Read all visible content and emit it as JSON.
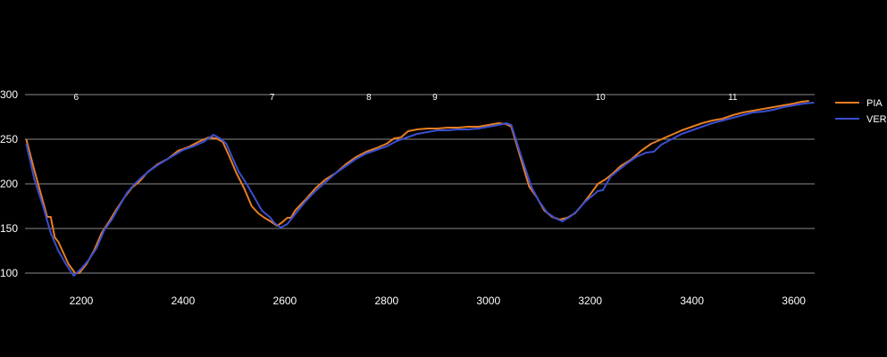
{
  "chart_data": {
    "type": "line",
    "title": "",
    "xlabel": "",
    "ylabel": "",
    "xlim": [
      2090,
      3640
    ],
    "ylim": [
      100,
      300
    ],
    "grid": true,
    "legend_position": "right",
    "x_ticks": [
      {
        "value": 2200,
        "label": "2200"
      },
      {
        "value": 2400,
        "label": "2400"
      },
      {
        "value": 2600,
        "label": "2600"
      },
      {
        "value": 2800,
        "label": "2800"
      },
      {
        "value": 3000,
        "label": "3000"
      },
      {
        "value": 3200,
        "label": "3200"
      },
      {
        "value": 3400,
        "label": "3400"
      },
      {
        "value": 3600,
        "label": "3600"
      }
    ],
    "y_ticks": [
      {
        "value": 300,
        "label": "300"
      },
      {
        "value": 250,
        "label": "250"
      },
      {
        "value": 200,
        "label": "200"
      },
      {
        "value": 150,
        "label": "150"
      },
      {
        "value": 100,
        "label": "100"
      }
    ],
    "corner_annotations": [
      {
        "x": 2190,
        "label": "6"
      },
      {
        "x": 2575,
        "label": "7"
      },
      {
        "x": 2765,
        "label": "8"
      },
      {
        "x": 2895,
        "label": "9"
      },
      {
        "x": 3220,
        "label": "10"
      },
      {
        "x": 3480,
        "label": "11"
      }
    ],
    "series": [
      {
        "name": "PIA",
        "color": "#e67e22",
        "points": [
          [
            2092,
            250
          ],
          [
            2108,
            215
          ],
          [
            2125,
            180
          ],
          [
            2133,
            163
          ],
          [
            2140,
            163
          ],
          [
            2148,
            140
          ],
          [
            2155,
            135
          ],
          [
            2163,
            125
          ],
          [
            2175,
            110
          ],
          [
            2188,
            100
          ],
          [
            2196,
            100
          ],
          [
            2210,
            110
          ],
          [
            2225,
            125
          ],
          [
            2240,
            145
          ],
          [
            2255,
            158
          ],
          [
            2270,
            172
          ],
          [
            2285,
            185
          ],
          [
            2300,
            196
          ],
          [
            2315,
            203
          ],
          [
            2330,
            213
          ],
          [
            2350,
            222
          ],
          [
            2370,
            228
          ],
          [
            2390,
            237
          ],
          [
            2410,
            241
          ],
          [
            2430,
            247
          ],
          [
            2450,
            252
          ],
          [
            2465,
            251
          ],
          [
            2478,
            247
          ],
          [
            2490,
            232
          ],
          [
            2505,
            212
          ],
          [
            2520,
            195
          ],
          [
            2535,
            175
          ],
          [
            2548,
            167
          ],
          [
            2560,
            162
          ],
          [
            2572,
            158
          ],
          [
            2585,
            153
          ],
          [
            2595,
            157
          ],
          [
            2605,
            162
          ],
          [
            2612,
            162
          ],
          [
            2620,
            170
          ],
          [
            2640,
            182
          ],
          [
            2660,
            195
          ],
          [
            2680,
            205
          ],
          [
            2700,
            212
          ],
          [
            2720,
            222
          ],
          [
            2740,
            230
          ],
          [
            2760,
            236
          ],
          [
            2780,
            240
          ],
          [
            2800,
            245
          ],
          [
            2815,
            251
          ],
          [
            2828,
            252
          ],
          [
            2842,
            259
          ],
          [
            2860,
            261
          ],
          [
            2880,
            262
          ],
          [
            2900,
            262
          ],
          [
            2920,
            263
          ],
          [
            2940,
            263
          ],
          [
            2960,
            264
          ],
          [
            2980,
            264
          ],
          [
            3000,
            266
          ],
          [
            3020,
            268
          ],
          [
            3035,
            267
          ],
          [
            3045,
            264
          ],
          [
            3055,
            245
          ],
          [
            3068,
            220
          ],
          [
            3080,
            197
          ],
          [
            3095,
            185
          ],
          [
            3110,
            170
          ],
          [
            3125,
            163
          ],
          [
            3140,
            160
          ],
          [
            3155,
            162
          ],
          [
            3170,
            167
          ],
          [
            3185,
            177
          ],
          [
            3200,
            188
          ],
          [
            3215,
            200
          ],
          [
            3230,
            205
          ],
          [
            3245,
            212
          ],
          [
            3260,
            220
          ],
          [
            3280,
            227
          ],
          [
            3300,
            237
          ],
          [
            3320,
            245
          ],
          [
            3340,
            250
          ],
          [
            3360,
            255
          ],
          [
            3380,
            260
          ],
          [
            3400,
            264
          ],
          [
            3420,
            268
          ],
          [
            3440,
            271
          ],
          [
            3460,
            273
          ],
          [
            3480,
            277
          ],
          [
            3500,
            280
          ],
          [
            3520,
            282
          ],
          [
            3540,
            284
          ],
          [
            3560,
            286
          ],
          [
            3580,
            288
          ],
          [
            3600,
            290
          ],
          [
            3615,
            292
          ],
          [
            3630,
            293
          ]
        ]
      },
      {
        "name": "VER",
        "color": "#3b4fd0",
        "points": [
          [
            2092,
            245
          ],
          [
            2108,
            205
          ],
          [
            2125,
            175
          ],
          [
            2140,
            145
          ],
          [
            2155,
            125
          ],
          [
            2170,
            110
          ],
          [
            2185,
            97
          ],
          [
            2200,
            105
          ],
          [
            2215,
            115
          ],
          [
            2230,
            128
          ],
          [
            2245,
            148
          ],
          [
            2260,
            160
          ],
          [
            2275,
            175
          ],
          [
            2290,
            190
          ],
          [
            2305,
            200
          ],
          [
            2320,
            208
          ],
          [
            2335,
            215
          ],
          [
            2350,
            221
          ],
          [
            2370,
            228
          ],
          [
            2385,
            233
          ],
          [
            2400,
            238
          ],
          [
            2420,
            242
          ],
          [
            2440,
            247
          ],
          [
            2460,
            255
          ],
          [
            2475,
            250
          ],
          [
            2485,
            245
          ],
          [
            2498,
            228
          ],
          [
            2510,
            213
          ],
          [
            2525,
            200
          ],
          [
            2540,
            185
          ],
          [
            2555,
            170
          ],
          [
            2570,
            163
          ],
          [
            2580,
            156
          ],
          [
            2592,
            151
          ],
          [
            2605,
            155
          ],
          [
            2620,
            166
          ],
          [
            2640,
            180
          ],
          [
            2660,
            192
          ],
          [
            2680,
            202
          ],
          [
            2700,
            212
          ],
          [
            2720,
            220
          ],
          [
            2740,
            228
          ],
          [
            2760,
            234
          ],
          [
            2780,
            238
          ],
          [
            2800,
            242
          ],
          [
            2820,
            248
          ],
          [
            2840,
            252
          ],
          [
            2860,
            256
          ],
          [
            2880,
            258
          ],
          [
            2900,
            260
          ],
          [
            2920,
            260
          ],
          [
            2940,
            261
          ],
          [
            2960,
            261
          ],
          [
            2980,
            262
          ],
          [
            3000,
            264
          ],
          [
            3020,
            266
          ],
          [
            3035,
            268
          ],
          [
            3045,
            266
          ],
          [
            3055,
            248
          ],
          [
            3065,
            230
          ],
          [
            3075,
            213
          ],
          [
            3085,
            196
          ],
          [
            3100,
            180
          ],
          [
            3115,
            168
          ],
          [
            3130,
            162
          ],
          [
            3145,
            158
          ],
          [
            3160,
            163
          ],
          [
            3175,
            170
          ],
          [
            3190,
            180
          ],
          [
            3205,
            187
          ],
          [
            3215,
            192
          ],
          [
            3225,
            193
          ],
          [
            3240,
            208
          ],
          [
            3255,
            215
          ],
          [
            3270,
            222
          ],
          [
            3290,
            230
          ],
          [
            3310,
            235
          ],
          [
            3325,
            236
          ],
          [
            3340,
            244
          ],
          [
            3360,
            250
          ],
          [
            3380,
            256
          ],
          [
            3400,
            260
          ],
          [
            3420,
            264
          ],
          [
            3440,
            268
          ],
          [
            3460,
            271
          ],
          [
            3480,
            274
          ],
          [
            3500,
            277
          ],
          [
            3520,
            280
          ],
          [
            3540,
            281
          ],
          [
            3560,
            283
          ],
          [
            3580,
            286
          ],
          [
            3600,
            288
          ],
          [
            3620,
            290
          ],
          [
            3640,
            291
          ]
        ]
      }
    ]
  }
}
